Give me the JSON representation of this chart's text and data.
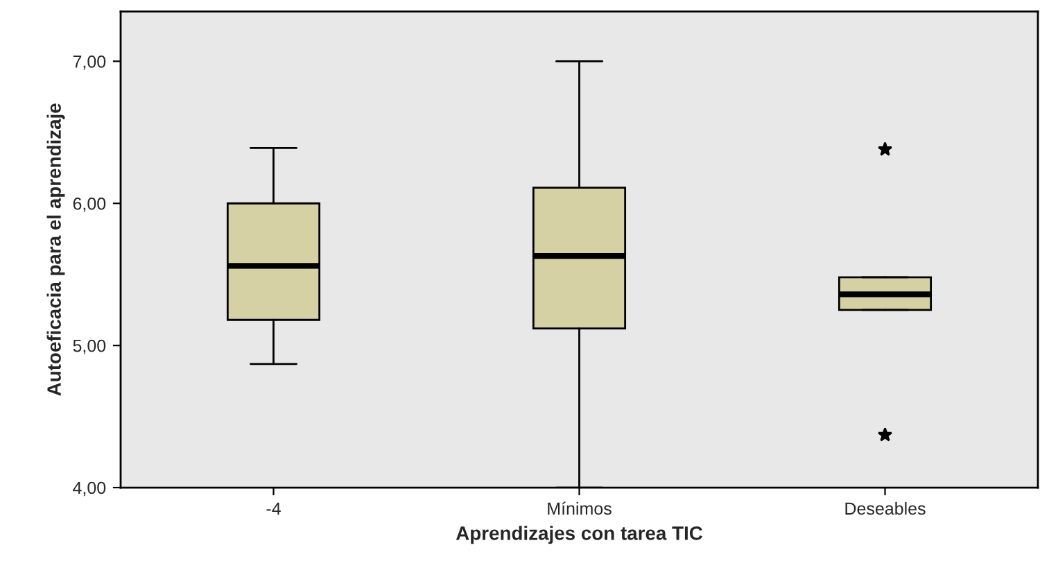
{
  "chart_data": {
    "type": "box",
    "xlabel": "Aprendizajes con tarea TIC",
    "ylabel": "Autoeficacia para el aprendizaje",
    "categories": [
      "-4",
      "Mínimos",
      "Deseables"
    ],
    "color": "#d6d1a4",
    "marker": "star",
    "boxes": [
      {
        "low": 4.87,
        "q1": 5.18,
        "median": 5.56,
        "q3": 6.0,
        "high": 6.39
      },
      {
        "low": 4.0,
        "q1": 5.12,
        "median": 5.63,
        "q3": 6.11,
        "high": 7.0
      },
      {
        "low": 5.25,
        "q1": 5.25,
        "median": 5.36,
        "q3": 5.48,
        "high": 5.48,
        "outliers": [
          6.38,
          4.37
        ]
      }
    ],
    "ylim": [
      4.0,
      7.35
    ],
    "yticks": [
      {
        "value": 4,
        "label": "4,00"
      },
      {
        "value": 5,
        "label": "5,00"
      },
      {
        "value": 6,
        "label": "6,00"
      },
      {
        "value": 7,
        "label": "7,00"
      }
    ],
    "grid": false
  }
}
